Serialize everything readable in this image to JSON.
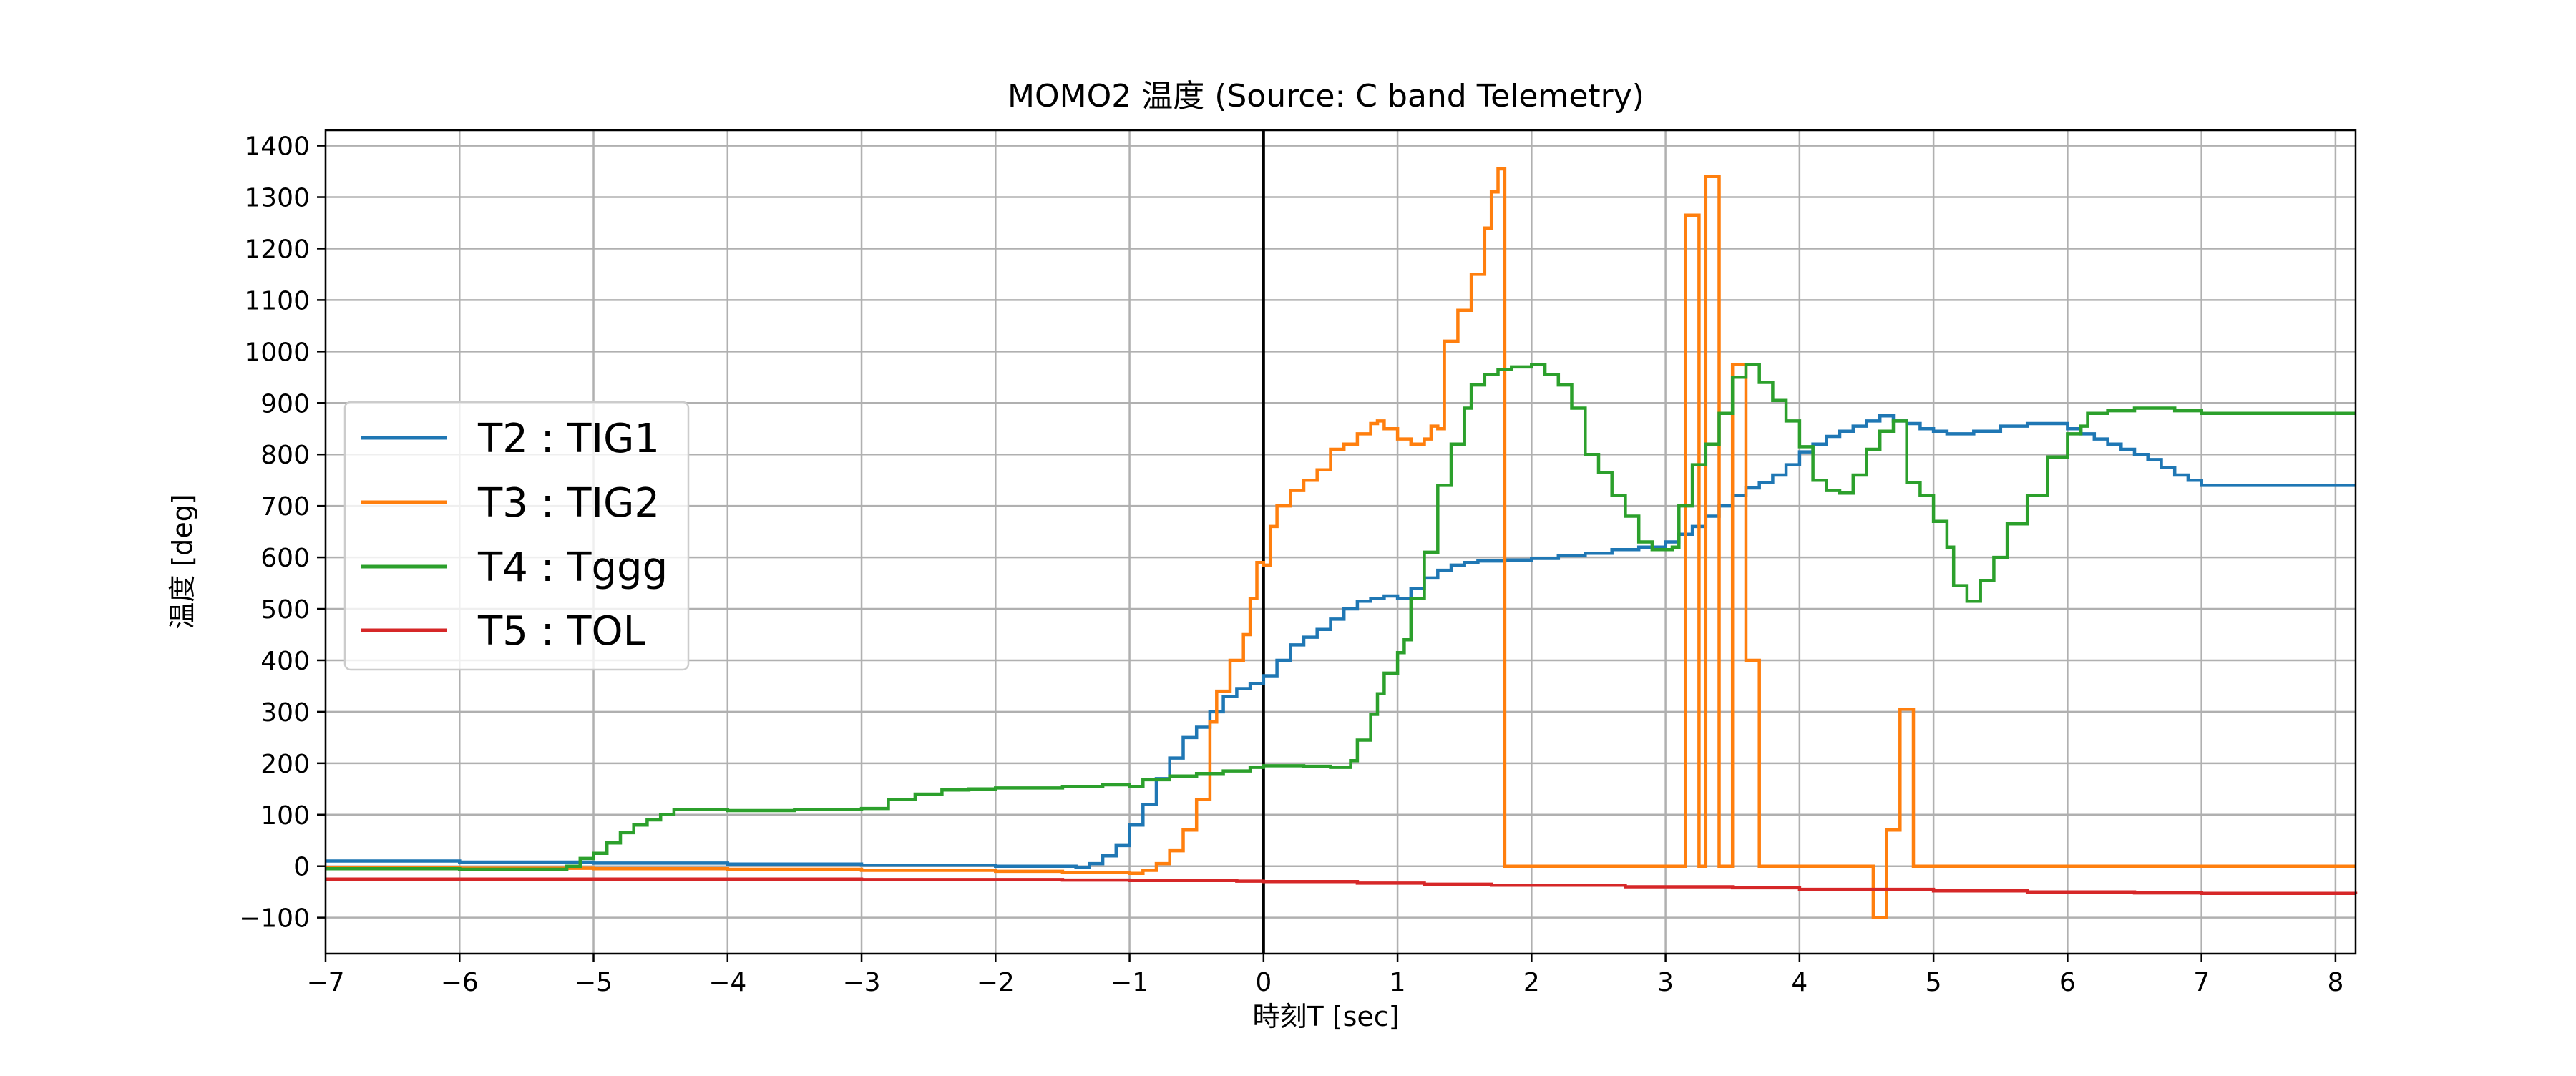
{
  "chart_data": {
    "type": "line",
    "step": "post",
    "title": "MOMO2 温度 (Source: C band Telemetry)",
    "xlabel": "時刻T [sec]",
    "ylabel": "温度 [deg]",
    "xlim": [
      -7,
      8.15
    ],
    "ylim": [
      -170,
      1430
    ],
    "xticks": [
      -7,
      -6,
      -5,
      -4,
      -3,
      -2,
      -1,
      0,
      1,
      2,
      3,
      4,
      5,
      6,
      7,
      8
    ],
    "xtick_labels": [
      "−7",
      "−6",
      "−5",
      "−4",
      "−3",
      "−2",
      "−1",
      "0",
      "1",
      "2",
      "3",
      "4",
      "5",
      "6",
      "7",
      "8"
    ],
    "yticks": [
      -100,
      0,
      100,
      200,
      300,
      400,
      500,
      600,
      700,
      800,
      900,
      1000,
      1100,
      1200,
      1300,
      1400
    ],
    "ytick_labels": [
      "−100",
      "0",
      "100",
      "200",
      "300",
      "400",
      "500",
      "600",
      "700",
      "800",
      "900",
      "1000",
      "1100",
      "1200",
      "1300",
      "1400"
    ],
    "grid": true,
    "legend_position": "center-left",
    "vertical_line_at_x": 0,
    "series": [
      {
        "name": "T2 : TIG1",
        "color": "#1f77b4",
        "points": [
          [
            -7,
            10
          ],
          [
            -6,
            8
          ],
          [
            -5,
            6
          ],
          [
            -4,
            4
          ],
          [
            -3,
            2
          ],
          [
            -2,
            0
          ],
          [
            -1.4,
            -2
          ],
          [
            -1.3,
            5
          ],
          [
            -1.2,
            20
          ],
          [
            -1.1,
            40
          ],
          [
            -1.0,
            80
          ],
          [
            -0.9,
            120
          ],
          [
            -0.8,
            170
          ],
          [
            -0.7,
            210
          ],
          [
            -0.6,
            250
          ],
          [
            -0.5,
            270
          ],
          [
            -0.4,
            300
          ],
          [
            -0.3,
            330
          ],
          [
            -0.2,
            345
          ],
          [
            -0.1,
            355
          ],
          [
            0,
            370
          ],
          [
            0.1,
            400
          ],
          [
            0.2,
            430
          ],
          [
            0.3,
            445
          ],
          [
            0.4,
            460
          ],
          [
            0.5,
            480
          ],
          [
            0.6,
            500
          ],
          [
            0.7,
            515
          ],
          [
            0.8,
            520
          ],
          [
            0.9,
            525
          ],
          [
            1.0,
            520
          ],
          [
            1.1,
            540
          ],
          [
            1.2,
            560
          ],
          [
            1.3,
            575
          ],
          [
            1.4,
            585
          ],
          [
            1.5,
            590
          ],
          [
            1.6,
            593
          ],
          [
            1.8,
            595
          ],
          [
            2.0,
            598
          ],
          [
            2.2,
            603
          ],
          [
            2.4,
            608
          ],
          [
            2.6,
            615
          ],
          [
            2.8,
            620
          ],
          [
            3.0,
            630
          ],
          [
            3.1,
            645
          ],
          [
            3.2,
            660
          ],
          [
            3.3,
            680
          ],
          [
            3.4,
            700
          ],
          [
            3.5,
            720
          ],
          [
            3.6,
            735
          ],
          [
            3.7,
            745
          ],
          [
            3.8,
            760
          ],
          [
            3.9,
            780
          ],
          [
            4.0,
            805
          ],
          [
            4.1,
            820
          ],
          [
            4.2,
            835
          ],
          [
            4.3,
            845
          ],
          [
            4.4,
            855
          ],
          [
            4.5,
            865
          ],
          [
            4.6,
            875
          ],
          [
            4.7,
            865
          ],
          [
            4.8,
            860
          ],
          [
            4.9,
            850
          ],
          [
            5.0,
            845
          ],
          [
            5.1,
            840
          ],
          [
            5.3,
            845
          ],
          [
            5.5,
            855
          ],
          [
            5.7,
            860
          ],
          [
            5.9,
            860
          ],
          [
            6.0,
            850
          ],
          [
            6.1,
            840
          ],
          [
            6.2,
            830
          ],
          [
            6.3,
            820
          ],
          [
            6.4,
            810
          ],
          [
            6.5,
            800
          ],
          [
            6.6,
            790
          ],
          [
            6.7,
            775
          ],
          [
            6.8,
            760
          ],
          [
            6.9,
            750
          ],
          [
            7.0,
            740
          ],
          [
            8.15,
            740
          ]
        ]
      },
      {
        "name": "T3 : TIG2",
        "color": "#ff7f0e",
        "points": [
          [
            -7,
            -3
          ],
          [
            -6,
            -4
          ],
          [
            -5,
            -5
          ],
          [
            -4,
            -6
          ],
          [
            -3,
            -8
          ],
          [
            -2,
            -10
          ],
          [
            -1.5,
            -12
          ],
          [
            -1.0,
            -14
          ],
          [
            -0.9,
            -8
          ],
          [
            -0.8,
            5
          ],
          [
            -0.7,
            30
          ],
          [
            -0.6,
            70
          ],
          [
            -0.5,
            130
          ],
          [
            -0.4,
            280
          ],
          [
            -0.35,
            340
          ],
          [
            -0.25,
            400
          ],
          [
            -0.15,
            450
          ],
          [
            -0.1,
            520
          ],
          [
            -0.05,
            590
          ],
          [
            0,
            585
          ],
          [
            0.05,
            660
          ],
          [
            0.1,
            700
          ],
          [
            0.2,
            730
          ],
          [
            0.3,
            750
          ],
          [
            0.4,
            770
          ],
          [
            0.5,
            810
          ],
          [
            0.6,
            820
          ],
          [
            0.7,
            840
          ],
          [
            0.8,
            860
          ],
          [
            0.85,
            865
          ],
          [
            0.9,
            850
          ],
          [
            1.0,
            830
          ],
          [
            1.1,
            820
          ],
          [
            1.2,
            830
          ],
          [
            1.25,
            855
          ],
          [
            1.3,
            850
          ],
          [
            1.35,
            1020
          ],
          [
            1.45,
            1080
          ],
          [
            1.55,
            1150
          ],
          [
            1.65,
            1240
          ],
          [
            1.7,
            1310
          ],
          [
            1.75,
            1355
          ],
          [
            1.8,
            0
          ],
          [
            3.15,
            1265
          ],
          [
            3.25,
            0
          ],
          [
            3.3,
            1340
          ],
          [
            3.4,
            0
          ],
          [
            3.5,
            975
          ],
          [
            3.6,
            400
          ],
          [
            3.7,
            0
          ],
          [
            4.55,
            -100
          ],
          [
            4.65,
            70
          ],
          [
            4.75,
            305
          ],
          [
            4.85,
            0
          ],
          [
            8.15,
            0
          ]
        ]
      },
      {
        "name": "T4 : Tggg",
        "color": "#2ca02c",
        "points": [
          [
            -7,
            -5
          ],
          [
            -6,
            -6
          ],
          [
            -5.2,
            0
          ],
          [
            -5.1,
            15
          ],
          [
            -5.0,
            25
          ],
          [
            -4.9,
            45
          ],
          [
            -4.8,
            65
          ],
          [
            -4.7,
            80
          ],
          [
            -4.6,
            90
          ],
          [
            -4.5,
            100
          ],
          [
            -4.4,
            110
          ],
          [
            -4.0,
            108
          ],
          [
            -3.5,
            110
          ],
          [
            -3.0,
            112
          ],
          [
            -2.8,
            130
          ],
          [
            -2.6,
            140
          ],
          [
            -2.4,
            148
          ],
          [
            -2.2,
            150
          ],
          [
            -2.0,
            152
          ],
          [
            -1.5,
            155
          ],
          [
            -1.2,
            158
          ],
          [
            -1.0,
            155
          ],
          [
            -0.9,
            168
          ],
          [
            -0.7,
            175
          ],
          [
            -0.5,
            180
          ],
          [
            -0.3,
            185
          ],
          [
            -0.1,
            192
          ],
          [
            0,
            195
          ],
          [
            0.3,
            194
          ],
          [
            0.5,
            192
          ],
          [
            0.65,
            205
          ],
          [
            0.7,
            245
          ],
          [
            0.8,
            295
          ],
          [
            0.85,
            335
          ],
          [
            0.9,
            375
          ],
          [
            1.0,
            415
          ],
          [
            1.05,
            440
          ],
          [
            1.1,
            520
          ],
          [
            1.2,
            610
          ],
          [
            1.3,
            740
          ],
          [
            1.4,
            820
          ],
          [
            1.5,
            890
          ],
          [
            1.55,
            935
          ],
          [
            1.65,
            955
          ],
          [
            1.75,
            965
          ],
          [
            1.85,
            970
          ],
          [
            2.0,
            975
          ],
          [
            2.1,
            955
          ],
          [
            2.2,
            935
          ],
          [
            2.3,
            890
          ],
          [
            2.4,
            800
          ],
          [
            2.5,
            765
          ],
          [
            2.6,
            720
          ],
          [
            2.7,
            680
          ],
          [
            2.8,
            630
          ],
          [
            2.9,
            615
          ],
          [
            3.05,
            620
          ],
          [
            3.1,
            700
          ],
          [
            3.2,
            780
          ],
          [
            3.3,
            820
          ],
          [
            3.4,
            880
          ],
          [
            3.5,
            950
          ],
          [
            3.6,
            975
          ],
          [
            3.7,
            940
          ],
          [
            3.8,
            905
          ],
          [
            3.9,
            865
          ],
          [
            4.0,
            815
          ],
          [
            4.1,
            750
          ],
          [
            4.2,
            730
          ],
          [
            4.3,
            725
          ],
          [
            4.4,
            760
          ],
          [
            4.5,
            810
          ],
          [
            4.6,
            845
          ],
          [
            4.7,
            865
          ],
          [
            4.8,
            745
          ],
          [
            4.9,
            720
          ],
          [
            5.0,
            670
          ],
          [
            5.1,
            620
          ],
          [
            5.15,
            545
          ],
          [
            5.25,
            515
          ],
          [
            5.35,
            555
          ],
          [
            5.45,
            600
          ],
          [
            5.55,
            665
          ],
          [
            5.7,
            720
          ],
          [
            5.85,
            795
          ],
          [
            6.0,
            840
          ],
          [
            6.1,
            855
          ],
          [
            6.15,
            880
          ],
          [
            6.3,
            885
          ],
          [
            6.5,
            890
          ],
          [
            6.8,
            885
          ],
          [
            7.0,
            880
          ],
          [
            8.15,
            880
          ]
        ]
      },
      {
        "name": "T5 : TOL",
        "color": "#d62728",
        "points": [
          [
            -7,
            -25
          ],
          [
            -5,
            -25
          ],
          [
            -3,
            -26
          ],
          [
            -2,
            -26
          ],
          [
            -1.5,
            -27
          ],
          [
            -1.0,
            -28
          ],
          [
            -0.2,
            -29
          ],
          [
            0,
            -30
          ],
          [
            0.7,
            -33
          ],
          [
            1.2,
            -35
          ],
          [
            1.7,
            -37
          ],
          [
            2.7,
            -40
          ],
          [
            3.5,
            -42
          ],
          [
            4.0,
            -45
          ],
          [
            5.0,
            -48
          ],
          [
            5.7,
            -50
          ],
          [
            6.5,
            -52
          ],
          [
            7.0,
            -53
          ],
          [
            8.15,
            -54
          ]
        ]
      }
    ]
  }
}
